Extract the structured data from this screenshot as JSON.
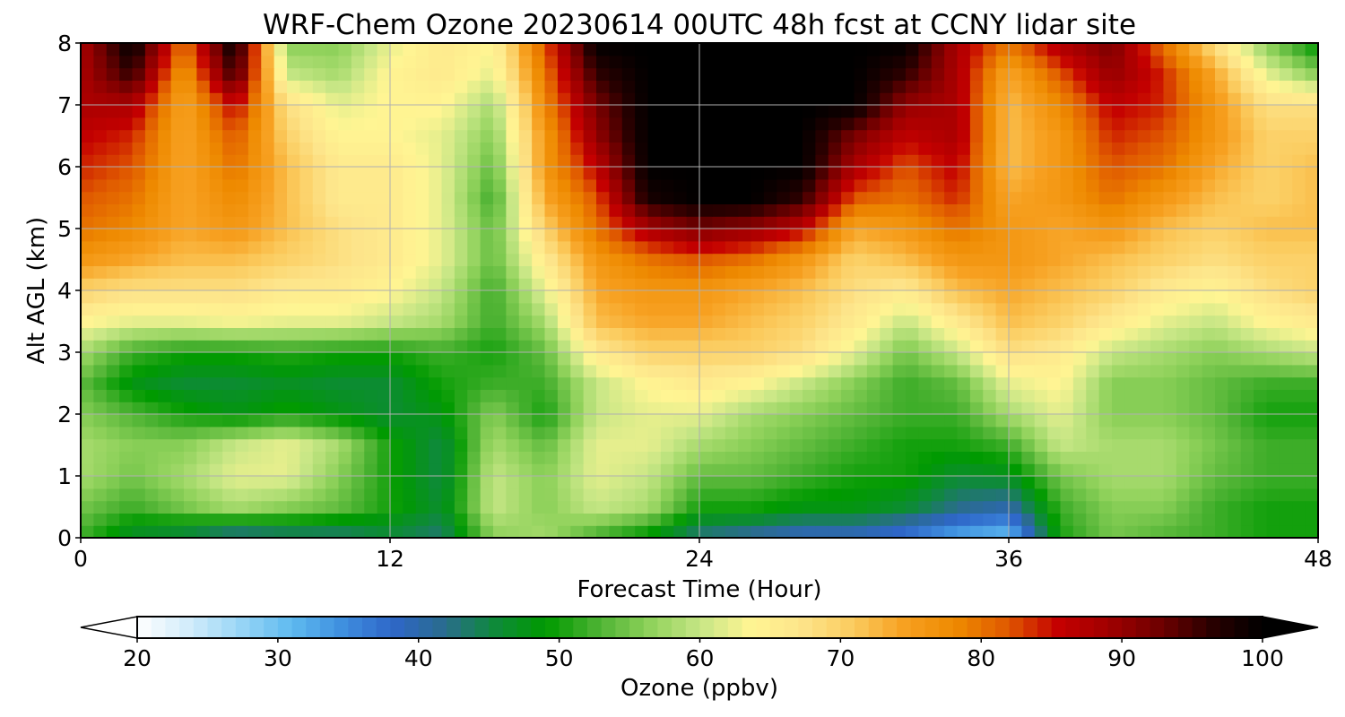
{
  "chart_data": {
    "type": "heatmap",
    "title": "WRF-Chem Ozone  20230614 00UTC 48h fcst at CCNY lidar site",
    "xlabel": "Forecast Time (Hour)",
    "ylabel": "Alt AGL (km)",
    "xlim": [
      0,
      48
    ],
    "ylim": [
      0,
      8
    ],
    "xticks": [
      "0",
      "12",
      "24",
      "36",
      "48"
    ],
    "yticks": [
      "0",
      "1",
      "2",
      "3",
      "4",
      "5",
      "6",
      "7",
      "8"
    ],
    "grid": true,
    "x": [
      0,
      2,
      4,
      6,
      8,
      10,
      12,
      14,
      16,
      18,
      20,
      22,
      24,
      26,
      28,
      30,
      32,
      34,
      36,
      38,
      40,
      42,
      44,
      46,
      48
    ],
    "y": [
      0,
      0.5,
      1,
      1.5,
      2,
      2.5,
      3,
      3.5,
      4,
      4.5,
      5,
      5.5,
      6,
      6.5,
      7,
      7.5,
      8
    ],
    "z": [
      [
        52,
        46,
        44,
        40,
        42,
        42,
        45,
        43,
        56,
        58,
        52,
        48,
        42,
        40,
        38,
        38,
        36,
        32,
        30,
        50,
        55,
        53,
        52,
        50,
        50
      ],
      [
        55,
        52,
        55,
        58,
        56,
        54,
        50,
        46,
        60,
        56,
        60,
        58,
        50,
        50,
        48,
        48,
        46,
        42,
        40,
        52,
        56,
        56,
        52,
        50,
        50
      ],
      [
        58,
        55,
        58,
        62,
        62,
        56,
        50,
        45,
        60,
        56,
        62,
        60,
        54,
        54,
        52,
        50,
        50,
        46,
        47,
        55,
        58,
        58,
        54,
        52,
        52
      ],
      [
        58,
        56,
        56,
        60,
        62,
        58,
        50,
        45,
        58,
        54,
        62,
        62,
        58,
        56,
        54,
        52,
        50,
        50,
        52,
        60,
        58,
        58,
        55,
        52,
        52
      ],
      [
        56,
        53,
        50,
        48,
        50,
        48,
        46,
        48,
        56,
        50,
        60,
        62,
        62,
        58,
        56,
        54,
        52,
        52,
        58,
        62,
        56,
        56,
        54,
        50,
        50
      ],
      [
        54,
        48,
        46,
        46,
        47,
        46,
        46,
        50,
        52,
        52,
        60,
        64,
        66,
        64,
        60,
        56,
        52,
        54,
        62,
        64,
        56,
        56,
        54,
        52,
        52
      ],
      [
        58,
        52,
        50,
        50,
        51,
        50,
        50,
        52,
        50,
        54,
        66,
        70,
        70,
        70,
        68,
        62,
        55,
        60,
        68,
        66,
        60,
        58,
        56,
        58,
        60
      ],
      [
        64,
        62,
        62,
        63,
        62,
        62,
        60,
        58,
        52,
        58,
        72,
        74,
        74,
        72,
        70,
        66,
        60,
        66,
        72,
        70,
        66,
        62,
        60,
        64,
        66
      ],
      [
        70,
        68,
        68,
        68,
        66,
        66,
        64,
        60,
        52,
        62,
        74,
        76,
        76,
        74,
        72,
        68,
        66,
        72,
        74,
        72,
        70,
        66,
        64,
        68,
        70
      ],
      [
        76,
        74,
        72,
        72,
        70,
        68,
        66,
        62,
        54,
        66,
        76,
        80,
        82,
        80,
        76,
        70,
        72,
        76,
        76,
        74,
        72,
        70,
        68,
        70,
        70
      ],
      [
        80,
        78,
        74,
        76,
        72,
        68,
        66,
        62,
        54,
        70,
        80,
        88,
        92,
        90,
        86,
        74,
        76,
        80,
        76,
        74,
        76,
        72,
        70,
        72,
        72
      ],
      [
        82,
        80,
        74,
        78,
        72,
        66,
        66,
        62,
        52,
        74,
        82,
        98,
        100,
        100,
        96,
        82,
        80,
        84,
        74,
        76,
        80,
        76,
        72,
        70,
        72
      ],
      [
        84,
        82,
        74,
        80,
        72,
        66,
        66,
        62,
        54,
        76,
        86,
        100,
        100,
        100,
        100,
        88,
        82,
        86,
        72,
        76,
        82,
        80,
        74,
        70,
        72
      ],
      [
        86,
        84,
        74,
        82,
        70,
        64,
        64,
        62,
        56,
        76,
        90,
        100,
        100,
        100,
        100,
        92,
        86,
        88,
        72,
        76,
        84,
        82,
        76,
        70,
        70
      ],
      [
        88,
        88,
        74,
        86,
        68,
        62,
        64,
        64,
        58,
        78,
        92,
        100,
        100,
        100,
        100,
        100,
        90,
        88,
        72,
        78,
        86,
        84,
        76,
        68,
        68
      ],
      [
        88,
        96,
        76,
        96,
        60,
        58,
        64,
        66,
        62,
        80,
        96,
        100,
        100,
        100,
        100,
        100,
        96,
        88,
        74,
        82,
        90,
        84,
        74,
        62,
        56
      ],
      [
        88,
        100,
        80,
        100,
        56,
        56,
        62,
        66,
        64,
        82,
        100,
        100,
        100,
        100,
        100,
        100,
        100,
        88,
        80,
        88,
        92,
        80,
        68,
        56,
        48
      ]
    ],
    "colorbar": {
      "label": "Ozone  (ppbv)",
      "min": 20,
      "max": 100,
      "ticks": [
        "20",
        "30",
        "40",
        "50",
        "60",
        "70",
        "80",
        "90",
        "100"
      ],
      "extend": "both",
      "colors": [
        "#ffffff",
        "#d2ecfb",
        "#9ad6f6",
        "#5fbbf0",
        "#3f8fdf",
        "#2e66c8",
        "#2a6c8e",
        "#0e8a3a",
        "#009a00",
        "#4cb232",
        "#8ed15a",
        "#c6e685",
        "#fff593",
        "#fde48a",
        "#fbcb5e",
        "#f7a020",
        "#ee8a00",
        "#e05a00",
        "#c40000",
        "#a00000",
        "#6e0000",
        "#2a0000",
        "#000000"
      ]
    }
  }
}
